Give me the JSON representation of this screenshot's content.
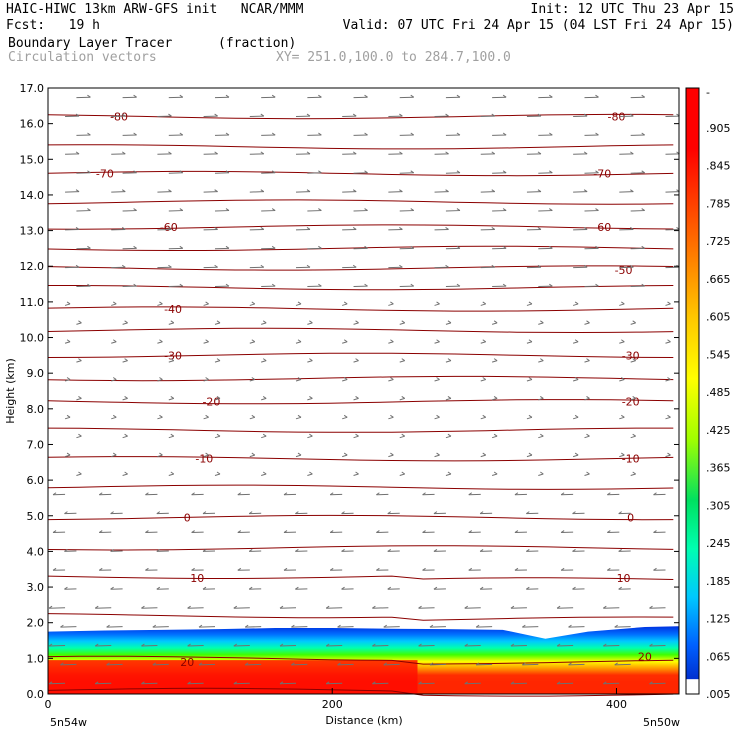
{
  "header": {
    "left_line1": "HAIC-HIWC 13km ARW-GFS init   NCAR/MMM",
    "right_line1": "Init: 12 UTC Thu 23 Apr 15",
    "left_line2": "Fcst:   19 h",
    "right_line2": "Valid: 07 UTC Fri 24 Apr 15 (04 LST Fri 24 Apr 15)",
    "field_name": "Boundary Layer Tracer",
    "field_units": "(fraction)",
    "overlay_name": "Circulation vectors",
    "xy_range": "XY= 251.0,100.0 to 284.7,100.0"
  },
  "chart_data": {
    "type": "heatmap",
    "xlabel": "Distance (km)",
    "ylabel": "Height (km)",
    "xlim": [
      0,
      444
    ],
    "ylim": [
      0,
      17
    ],
    "x_ticks": [
      0,
      200,
      400
    ],
    "y_ticks": [
      "0.0",
      "1.0",
      "2.0",
      "3.0",
      "4.0",
      "5.0",
      "6.0",
      "7.0",
      "8.0",
      "9.0",
      "10.0",
      "11.0",
      "12.0",
      "13.0",
      "14.0",
      "15.0",
      "16.0",
      "17.0"
    ],
    "left_endpoint_label": "5n54w",
    "right_endpoint_label": "5n50w",
    "colorbar_labels": [
      "-",
      ".905",
      ".845",
      ".785",
      ".725",
      ".665",
      ".605",
      ".545",
      ".485",
      ".425",
      ".365",
      ".305",
      ".245",
      ".185",
      ".125",
      ".065",
      ".005"
    ],
    "colorbar_colors": [
      "#ff0000",
      "#ff1a1a",
      "#ff4000",
      "#ff6a00",
      "#ff9a00",
      "#ffc800",
      "#ffff00",
      "#d8ff00",
      "#a0ff00",
      "#40ff00",
      "#00e060",
      "#00ffb0",
      "#00e8ff",
      "#00a8ff",
      "#0070ff",
      "#0040e0",
      "#ffffff"
    ],
    "tracer_layer": {
      "top_height_km": [
        1.75,
        1.78,
        1.8,
        1.82,
        1.85,
        1.85,
        1.83,
        1.82,
        1.8,
        1.55,
        1.75,
        1.88,
        1.9
      ],
      "x_km": [
        0,
        40,
        80,
        120,
        160,
        200,
        240,
        280,
        320,
        350,
        380,
        420,
        444
      ]
    },
    "temperature_contours": {
      "color": "#8b0000",
      "labels": [
        {
          "value": "-80",
          "x": 50,
          "y": 16.2
        },
        {
          "value": "-80",
          "x": 400,
          "y": 16.2
        },
        {
          "value": "-70",
          "x": 40,
          "y": 14.6
        },
        {
          "value": "-70",
          "x": 390,
          "y": 14.6
        },
        {
          "value": "-60",
          "x": 85,
          "y": 13.1
        },
        {
          "value": "-60",
          "x": 390,
          "y": 13.1
        },
        {
          "value": "-50",
          "x": 405,
          "y": 11.9
        },
        {
          "value": "-40",
          "x": 88,
          "y": 10.8
        },
        {
          "value": "-30",
          "x": 88,
          "y": 9.5
        },
        {
          "value": "-30",
          "x": 410,
          "y": 9.5
        },
        {
          "value": "-20",
          "x": 115,
          "y": 8.2
        },
        {
          "value": "-20",
          "x": 410,
          "y": 8.2
        },
        {
          "value": "-10",
          "x": 110,
          "y": 6.6
        },
        {
          "value": "-10",
          "x": 410,
          "y": 6.6
        },
        {
          "value": "0",
          "x": 98,
          "y": 4.95
        },
        {
          "value": "0",
          "x": 410,
          "y": 4.95
        },
        {
          "value": "10",
          "x": 105,
          "y": 3.25
        },
        {
          "value": "10",
          "x": 405,
          "y": 3.25
        },
        {
          "value": "20",
          "x": 98,
          "y": 0.9
        },
        {
          "value": "20",
          "x": 420,
          "y": 1.05
        }
      ]
    }
  }
}
